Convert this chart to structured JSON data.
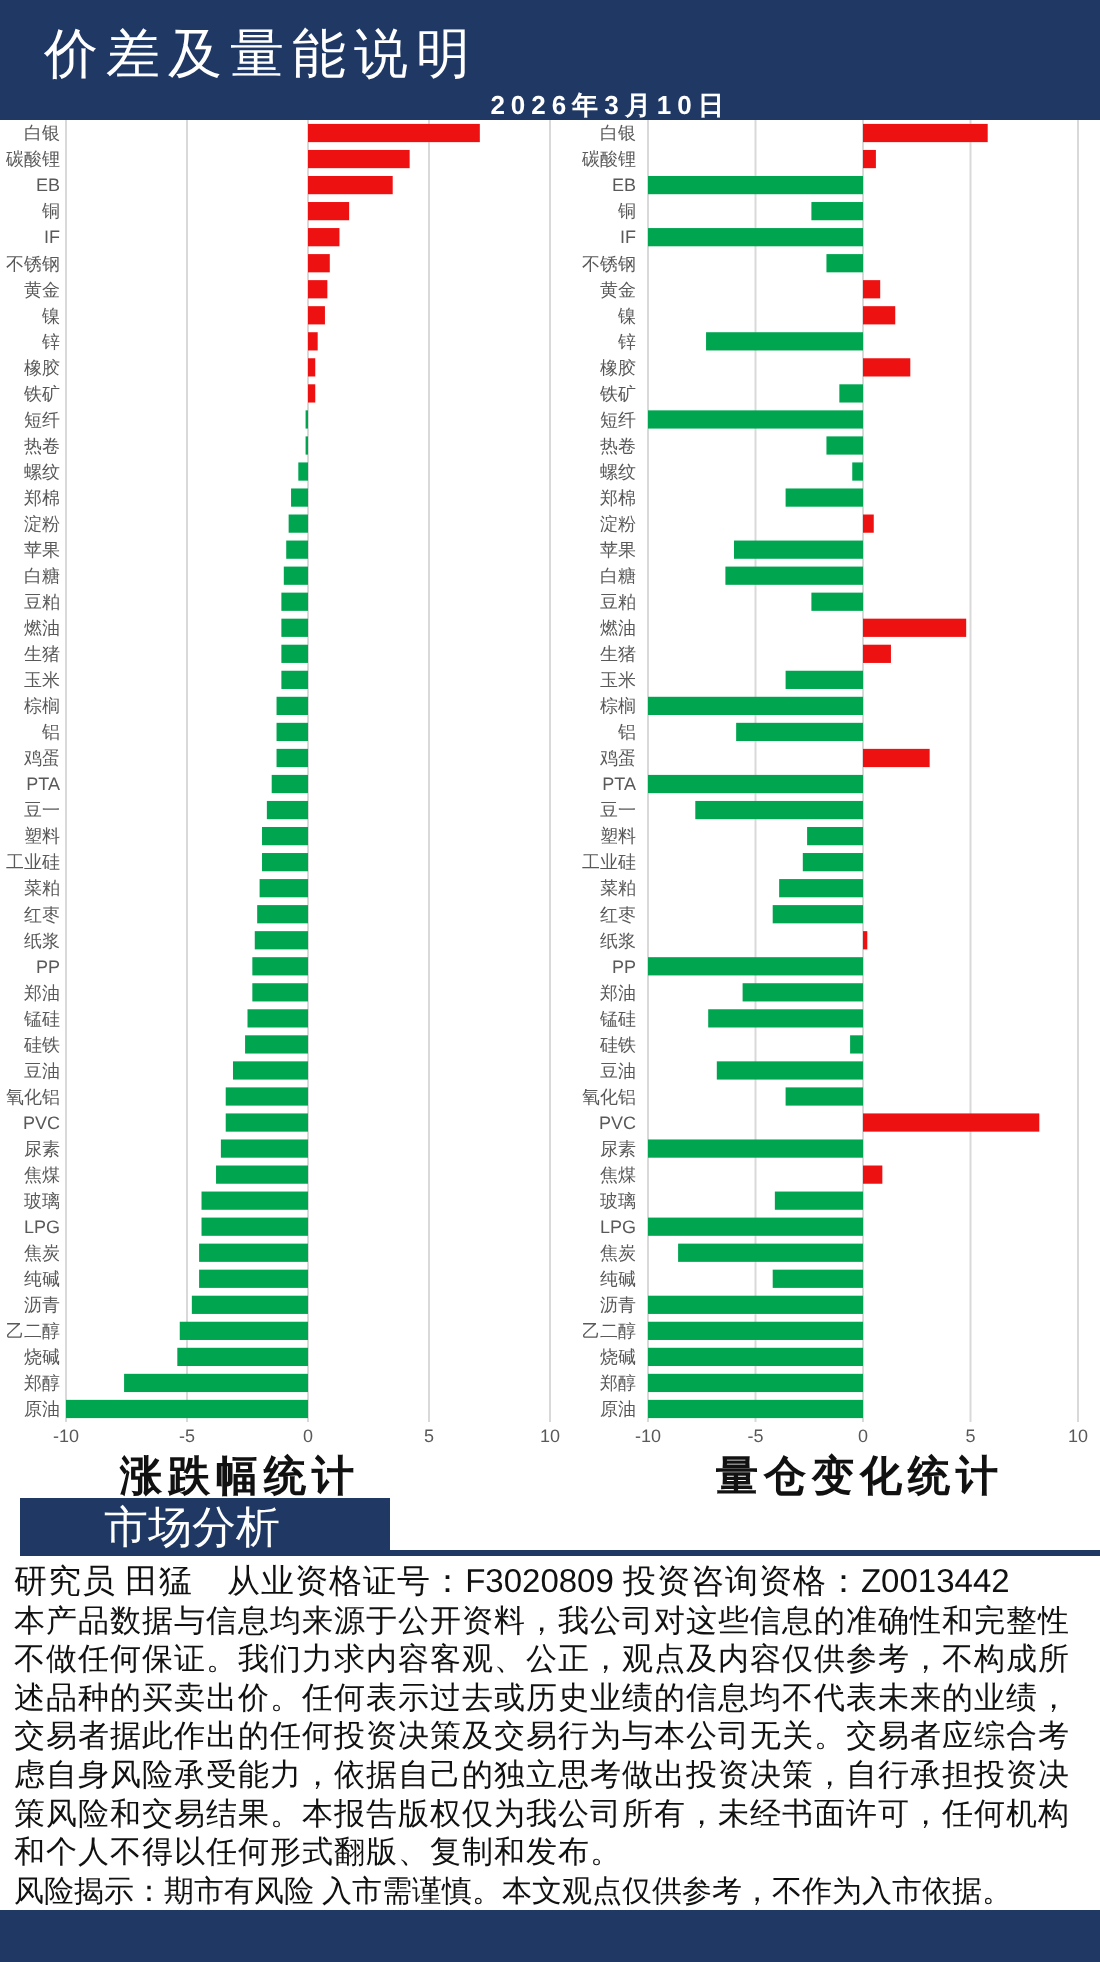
{
  "chart_data": [
    {
      "type": "bar",
      "orientation": "horizontal",
      "title": "价差及量能说明",
      "subtitle": "2026年3月10日",
      "xlabel": "涨跌幅统计",
      "categories": [
        "白银",
        "碳酸锂",
        "EB",
        "铜",
        "IF",
        "不锈钢",
        "黄金",
        "镍",
        "锌",
        "橡胶",
        "铁矿",
        "短纤",
        "热卷",
        "螺纹",
        "郑棉",
        "淀粉",
        "苹果",
        "白糖",
        "豆粕",
        "燃油",
        "生猪",
        "玉米",
        "棕榈",
        "铝",
        "鸡蛋",
        "PTA",
        "豆一",
        "塑料",
        "工业硅",
        "菜粕",
        "红枣",
        "纸浆",
        "PP",
        "郑油",
        "锰硅",
        "硅铁",
        "豆油",
        "氧化铝",
        "PVC",
        "尿素",
        "焦煤",
        "玻璃",
        "LPG",
        "焦炭",
        "纯碱",
        "沥青",
        "乙二醇",
        "烧碱",
        "郑醇",
        "原油"
      ],
      "values": [
        7.1,
        4.2,
        3.5,
        1.7,
        1.3,
        0.9,
        0.8,
        0.7,
        0.4,
        0.3,
        0.3,
        -0.1,
        -0.1,
        -0.4,
        -0.7,
        -0.8,
        -0.9,
        -1.0,
        -1.1,
        -1.1,
        -1.1,
        -1.1,
        -1.3,
        -1.3,
        -1.3,
        -1.5,
        -1.7,
        -1.9,
        -1.9,
        -2.0,
        -2.1,
        -2.2,
        -2.3,
        -2.3,
        -2.5,
        -2.6,
        -3.1,
        -3.4,
        -3.4,
        -3.6,
        -3.8,
        -4.4,
        -4.4,
        -4.5,
        -4.5,
        -4.8,
        -5.3,
        -5.4,
        -7.6,
        -10
      ],
      "colors": [
        "#ee1111",
        "#ee1111",
        "#ee1111",
        "#ee1111",
        "#ee1111",
        "#ee1111",
        "#ee1111",
        "#ee1111",
        "#ee1111",
        "#ee1111",
        "#ee1111",
        "#00a550",
        "#00a550",
        "#00a550",
        "#00a550",
        "#00a550",
        "#00a550",
        "#00a550",
        "#00a550",
        "#00a550",
        "#00a550",
        "#00a550",
        "#00a550",
        "#00a550",
        "#00a550",
        "#00a550",
        "#00a550",
        "#00a550",
        "#00a550",
        "#00a550",
        "#00a550",
        "#00a550",
        "#00a550",
        "#00a550",
        "#00a550",
        "#00a550",
        "#00a550",
        "#00a550",
        "#00a550",
        "#00a550",
        "#00a550",
        "#00a550",
        "#00a550",
        "#00a550",
        "#00a550",
        "#00a550",
        "#00a550",
        "#00a550",
        "#00a550",
        "#00a550"
      ],
      "xlim": [
        -10,
        10
      ],
      "xticks": [
        -10,
        -5,
        0,
        5,
        10
      ],
      "grid": "x",
      "annotations": [
        "市场分析",
        "研究员 田猛　从业资格证号：F3020809 投资咨询资格：Z0013442",
        "本产品数据与信息均来源于公开资料，我公司对这些信息的准确性和完整性不做任何保证。我们力求内容客观、公正，观点及内容仅供参考，不构成所述品种的买卖出价。任何表示过去或历史业绩的信息均不代表未来的业绩，交易者据此作出的任何投资决策及交易行为与本公司无关。交易者应综合考虑自身风险承受能力，依据自己的独立思考做出投资决策，自行承担投资决策风险和交易结果。本报告版权仅为我公司所有，未经书面许可，任何机构和个人不得以任何形式翻版、复制和发布。",
        "风险揭示：期市有风险 入市需谨慎。本文观点仅供参考，不作为入市依据。"
      ]
    },
    {
      "type": "bar",
      "orientation": "horizontal",
      "xlabel": "量仓变化统计",
      "categories": [
        "白银",
        "碳酸锂",
        "EB",
        "铜",
        "IF",
        "不锈钢",
        "黄金",
        "镍",
        "锌",
        "橡胶",
        "铁矿",
        "短纤",
        "热卷",
        "螺纹",
        "郑棉",
        "淀粉",
        "苹果",
        "白糖",
        "豆粕",
        "燃油",
        "生猪",
        "玉米",
        "棕榈",
        "铝",
        "鸡蛋",
        "PTA",
        "豆一",
        "塑料",
        "工业硅",
        "菜粕",
        "红枣",
        "纸浆",
        "PP",
        "郑油",
        "锰硅",
        "硅铁",
        "豆油",
        "氧化铝",
        "PVC",
        "尿素",
        "焦煤",
        "玻璃",
        "LPG",
        "焦炭",
        "纯碱",
        "沥青",
        "乙二醇",
        "烧碱",
        "郑醇",
        "原油"
      ],
      "values": [
        5.8,
        0.6,
        -10,
        -2.4,
        -10,
        -1.7,
        0.8,
        1.5,
        -7.3,
        2.2,
        -1.1,
        -10,
        -1.7,
        -0.5,
        -3.6,
        0.5,
        -6.0,
        -6.4,
        -2.4,
        4.8,
        1.3,
        -3.6,
        -10,
        -5.9,
        3.1,
        -10,
        -7.8,
        -2.6,
        -2.8,
        -3.9,
        -4.2,
        0.2,
        -10,
        -5.6,
        -7.2,
        -0.6,
        -6.8,
        -3.6,
        8.2,
        -10,
        0.9,
        -4.1,
        -10,
        -8.6,
        -4.2,
        -10,
        -10,
        -10,
        -10,
        -10
      ],
      "colors": [
        "#ee1111",
        "#ee1111",
        "#00a550",
        "#00a550",
        "#00a550",
        "#00a550",
        "#ee1111",
        "#ee1111",
        "#00a550",
        "#ee1111",
        "#00a550",
        "#00a550",
        "#00a550",
        "#00a550",
        "#00a550",
        "#ee1111",
        "#00a550",
        "#00a550",
        "#00a550",
        "#ee1111",
        "#ee1111",
        "#00a550",
        "#00a550",
        "#00a550",
        "#ee1111",
        "#00a550",
        "#00a550",
        "#00a550",
        "#00a550",
        "#00a550",
        "#00a550",
        "#ee1111",
        "#00a550",
        "#00a550",
        "#00a550",
        "#00a550",
        "#00a550",
        "#00a550",
        "#ee1111",
        "#00a550",
        "#ee1111",
        "#00a550",
        "#00a550",
        "#00a550",
        "#00a550",
        "#00a550",
        "#00a550",
        "#00a550",
        "#00a550",
        "#00a550"
      ],
      "xlim": [
        -10,
        10
      ],
      "xticks": [
        -10,
        -5,
        0,
        5,
        10
      ],
      "grid": "x"
    }
  ]
}
